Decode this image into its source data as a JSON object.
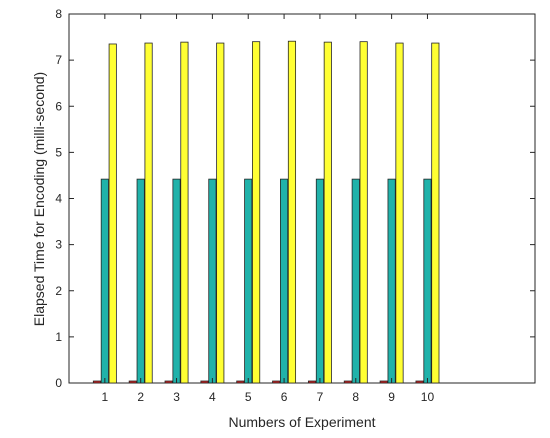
{
  "chart_data": {
    "type": "bar",
    "title": "",
    "xlabel": "Numbers of Experiment",
    "ylabel": "Elapsed Time for Encoding (milli-second)",
    "categories": [
      "1",
      "2",
      "3",
      "4",
      "5",
      "6",
      "7",
      "8",
      "9",
      "10"
    ],
    "xlim": [
      0,
      13
    ],
    "ylim": [
      0,
      8
    ],
    "yticks": [
      0,
      1,
      2,
      3,
      4,
      5,
      6,
      7,
      8
    ],
    "grid": false,
    "legend": "none",
    "series": [
      {
        "color": "#cc1f1f",
        "values": [
          0.02,
          0.02,
          0.02,
          0.02,
          0.02,
          0.02,
          0.02,
          0.02,
          0.02,
          0.02
        ]
      },
      {
        "color": "#20b2aa",
        "values": [
          4.42,
          4.42,
          4.42,
          4.42,
          4.42,
          4.42,
          4.42,
          4.42,
          4.42,
          4.42
        ]
      },
      {
        "color": "#ffff33",
        "values": [
          7.35,
          7.37,
          7.39,
          7.37,
          7.4,
          7.41,
          7.39,
          7.4,
          7.37,
          7.37
        ]
      }
    ]
  }
}
